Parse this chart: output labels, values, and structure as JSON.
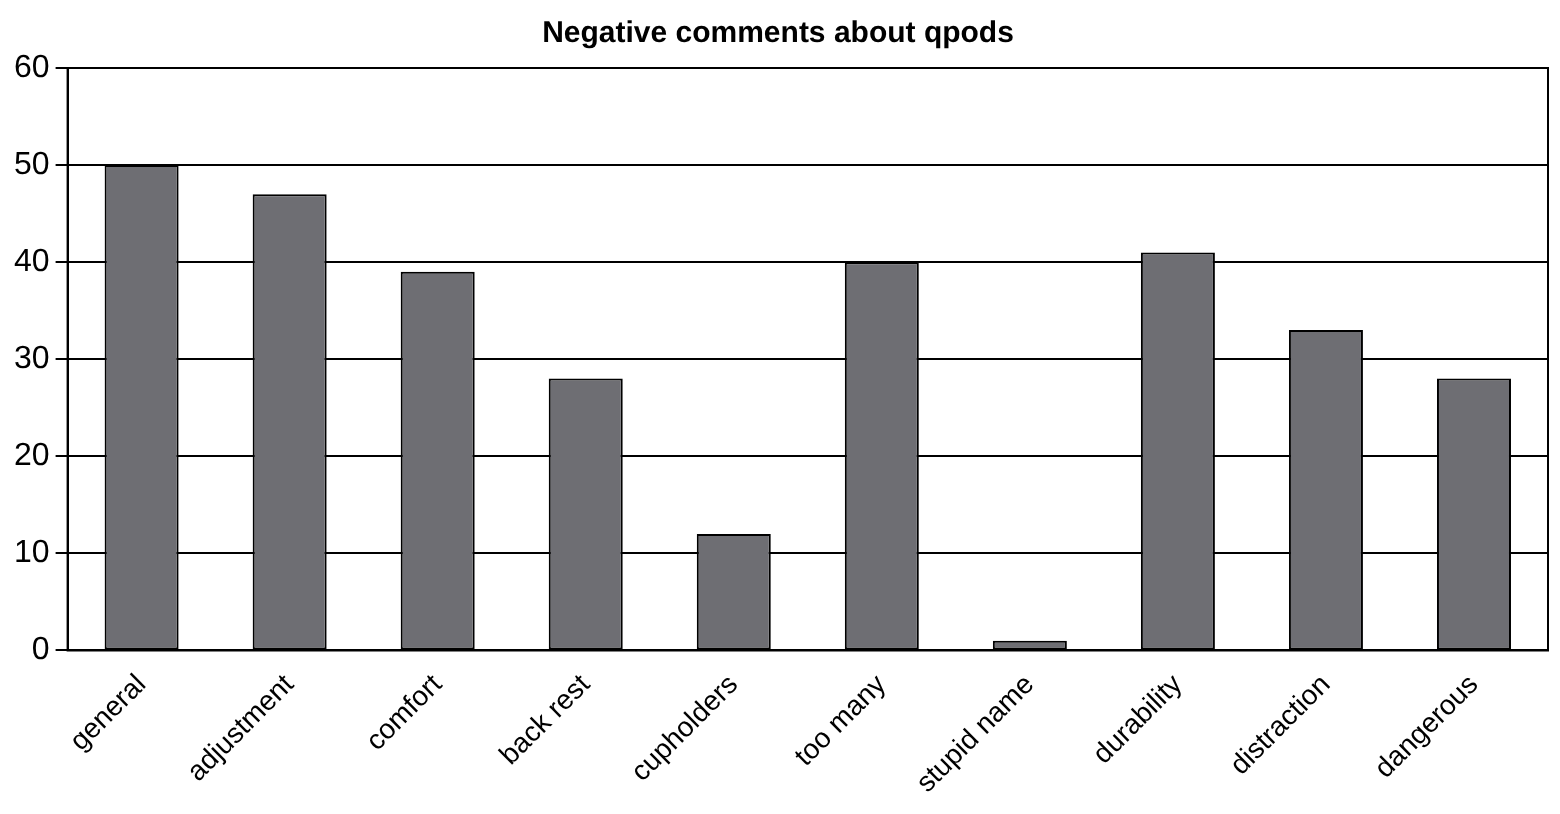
{
  "chart_data": {
    "type": "bar",
    "title": "Negative comments about qpods",
    "categories": [
      "general",
      "adjustment",
      "comfort",
      "back rest",
      "cupholders",
      "too many",
      "stupid name",
      "durability",
      "distraction",
      "dangerous"
    ],
    "values": [
      50,
      47,
      39,
      28,
      12,
      40,
      1,
      41,
      33,
      28
    ],
    "color": "#6e6e73",
    "ylim": [
      0,
      60
    ],
    "yticks": [
      0,
      10,
      20,
      30,
      40,
      50,
      60
    ],
    "grid": "y",
    "legend": false
  }
}
